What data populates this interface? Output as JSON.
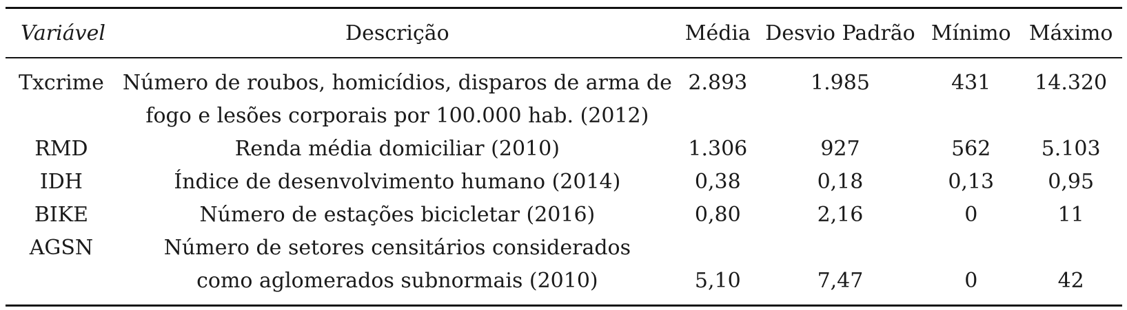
{
  "table": {
    "headers": {
      "variavel": "Variável",
      "descricao": "Descrição",
      "media": "Média",
      "desvio": "Desvio Padrão",
      "minimo": "Mínimo",
      "maximo": "Máximo"
    },
    "rows": [
      {
        "var": "Txcrime",
        "desc1": "Número de roubos, homicídios, disparos de arma de",
        "desc2": "fogo e lesões corporais por 100.000 hab. (2012)",
        "media": "2.893",
        "desvio": "1.985",
        "minimo": "431",
        "maximo": "14.320"
      },
      {
        "var": "RMD",
        "desc1": "Renda média domiciliar (2010)",
        "media": "1.306",
        "desvio": "927",
        "minimo": "562",
        "maximo": "5.103"
      },
      {
        "var": "IDH",
        "desc1": "Índice de desenvolvimento humano (2014)",
        "media": "0,38",
        "desvio": "0,18",
        "minimo": "0,13",
        "maximo": "0,95"
      },
      {
        "var": "BIKE",
        "desc1": "Número de estações bicicletar (2016)",
        "media": "0,80",
        "desvio": "2,16",
        "minimo": "0",
        "maximo": "11"
      },
      {
        "var": "AGSN",
        "desc1": "Número de setores censitários considerados",
        "desc2": "como aglomerados subnormais (2010)",
        "media": "5,10",
        "desvio": "7,47",
        "minimo": "0",
        "maximo": "42"
      }
    ]
  }
}
